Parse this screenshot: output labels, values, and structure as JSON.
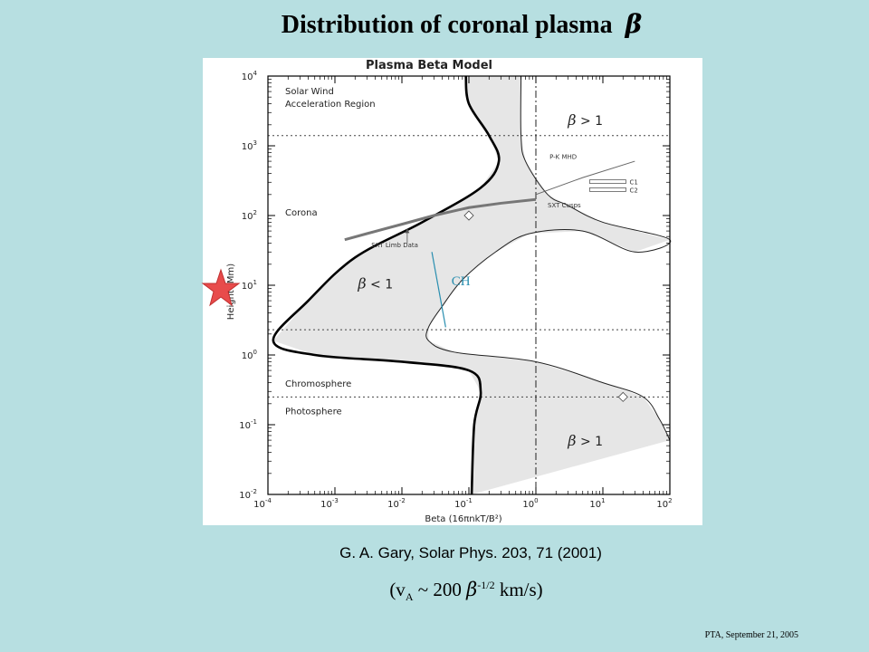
{
  "slide": {
    "title": "Distribution of coronal plasma",
    "title_symbol": "β",
    "citation": "G. A. Gary, Solar Phys. 203, 71 (2001)",
    "formula": {
      "prefix": "(v",
      "sub": "A",
      "mid": " ~ 200 ",
      "symbol": "β",
      "sup": "-1/2",
      "suffix": " km/s)"
    },
    "footer": "PTA, September 21, 2005"
  },
  "chart_data": {
    "type": "line",
    "title": "Plasma Beta Model",
    "xlabel": "Beta (16πnkT/B²)",
    "ylabel": "Height (Mm)",
    "xscale": "log",
    "yscale": "log",
    "xlim": [
      0.0001,
      100
    ],
    "ylim": [
      0.01,
      10000
    ],
    "x_ticks": [
      {
        "base": "10",
        "exp": "-4"
      },
      {
        "base": "10",
        "exp": "-3"
      },
      {
        "base": "10",
        "exp": "-2"
      },
      {
        "base": "10",
        "exp": "-1"
      },
      {
        "base": "10",
        "exp": "0"
      },
      {
        "base": "10",
        "exp": "1"
      },
      {
        "base": "10",
        "exp": "2"
      }
    ],
    "y_ticks": [
      {
        "base": "10",
        "exp": "-2"
      },
      {
        "base": "10",
        "exp": "-1"
      },
      {
        "base": "10",
        "exp": "0"
      },
      {
        "base": "10",
        "exp": "1"
      },
      {
        "base": "10",
        "exp": "2"
      },
      {
        "base": "10",
        "exp": "3"
      },
      {
        "base": "10",
        "exp": "4"
      }
    ],
    "series": [
      {
        "style": "thick-black",
        "points": [
          [
            0.09,
            10000
          ],
          [
            0.1,
            4000
          ],
          [
            0.2,
            1400
          ],
          [
            0.28,
            600
          ],
          [
            0.15,
            250
          ],
          [
            0.02,
            80
          ],
          [
            0.002,
            25
          ],
          [
            0.0004,
            6
          ],
          [
            0.00012,
            1.6
          ],
          [
            0.0005,
            1.0
          ],
          [
            0.01,
            0.8
          ],
          [
            0.1,
            0.6
          ],
          [
            0.15,
            0.3
          ],
          [
            0.12,
            0.1
          ],
          [
            0.11,
            0.01
          ]
        ]
      },
      {
        "style": "thin-black",
        "points": [
          [
            0.6,
            10000
          ],
          [
            0.6,
            1400
          ],
          [
            0.7,
            600
          ],
          [
            1.5,
            200
          ],
          [
            3,
            140
          ],
          [
            10,
            80
          ],
          [
            100,
            45
          ],
          [
            30,
            30
          ],
          [
            5,
            60
          ],
          [
            0.8,
            55
          ],
          [
            0.25,
            30
          ],
          [
            0.08,
            12
          ],
          [
            0.04,
            5
          ],
          [
            0.025,
            2.5
          ],
          [
            0.025,
            1.6
          ],
          [
            0.06,
            1.1
          ],
          [
            1,
            0.8
          ],
          [
            10,
            0.4
          ],
          [
            40,
            0.25
          ],
          [
            70,
            0.12
          ],
          [
            100,
            0.06
          ]
        ]
      },
      {
        "name": "SXT Limb Data",
        "style": "thick-gray",
        "points": [
          [
            0.0014,
            45
          ],
          [
            0.003,
            55
          ],
          [
            0.01,
            75
          ],
          [
            0.03,
            100
          ],
          [
            0.1,
            130
          ],
          [
            0.3,
            150
          ],
          [
            1,
            170
          ]
        ]
      },
      {
        "name": "P-K MHD",
        "style": "gray",
        "points": [
          [
            1,
            200
          ],
          [
            5,
            350
          ],
          [
            30,
            600
          ]
        ]
      },
      {
        "name": "CH",
        "style": "cyan",
        "points": [
          [
            0.028,
            30
          ],
          [
            0.045,
            2.5
          ]
        ]
      }
    ],
    "vertical_lines": [
      {
        "x": 1,
        "style": "dash-dot"
      }
    ],
    "horizontal_lines": [
      {
        "y": 1400,
        "style": "dotted"
      },
      {
        "y": 2.3,
        "style": "dotted"
      },
      {
        "y": 0.25,
        "style": "dotted"
      }
    ],
    "markers": [
      {
        "shape": "diamond",
        "x": 0.1,
        "y": 100
      },
      {
        "shape": "diamond",
        "x": 20,
        "y": 0.25
      }
    ],
    "annotations": {
      "regions": [
        {
          "text": "Solar Wind",
          "x": 0.00015,
          "y": 5500
        },
        {
          "text": "Acceleration Region",
          "x": 0.00015,
          "y": 3600
        },
        {
          "text": "Corona",
          "x": 0.00015,
          "y": 100
        },
        {
          "text": "Chromosphere",
          "x": 0.00015,
          "y": 0.35
        },
        {
          "text": "Photosphere",
          "x": 0.00015,
          "y": 0.14
        }
      ],
      "beta_labels": [
        {
          "symbol": "β",
          "rest": " > 1",
          "x": 3,
          "y": 2000
        },
        {
          "symbol": "β",
          "rest": " < 1",
          "x": 0.0022,
          "y": 9
        },
        {
          "symbol": "β",
          "rest": " > 1",
          "x": 3,
          "y": 0.05
        }
      ],
      "small_labels": [
        {
          "text": "P-K MHD",
          "x": 1.6,
          "y": 650
        },
        {
          "text": "C1",
          "x": 25,
          "y": 280
        },
        {
          "text": "C2",
          "x": 25,
          "y": 215
        },
        {
          "text": "SXT Cusps",
          "x": 1.5,
          "y": 130
        },
        {
          "text": "SXT Limb Data",
          "x": 0.0035,
          "y": 35
        }
      ],
      "ch_label": {
        "text": "CH",
        "x": 0.055,
        "y": 10
      }
    }
  }
}
